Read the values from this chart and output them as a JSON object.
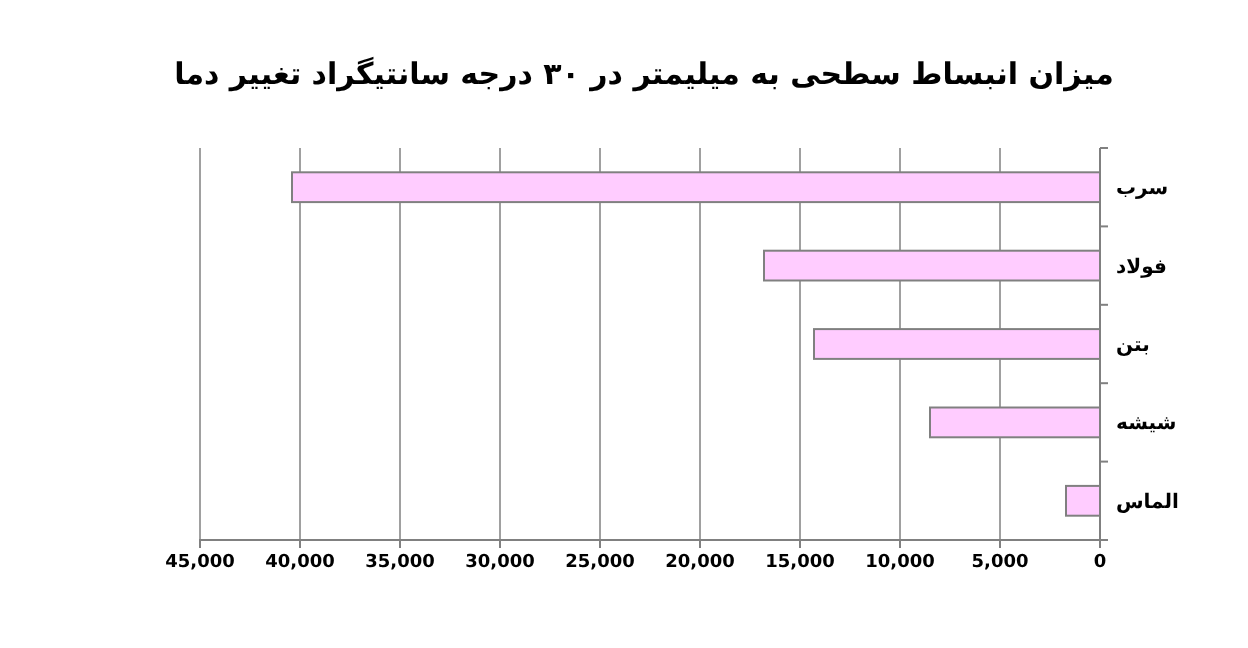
{
  "chart_data": {
    "type": "bar",
    "orientation": "horizontal",
    "title": "میزان انبساط سطحی به میلیمتر در ۳۰ درجه سانتیگراد تغییر دما",
    "categories": [
      "سرب",
      "فولاد",
      "بتن",
      "شیشه",
      "الماس"
    ],
    "values": [
      40400,
      16800,
      14300,
      8500,
      1700
    ],
    "color": "#ffccff",
    "xlim": [
      45000,
      0
    ],
    "xticks": [
      {
        "value": 45000,
        "label": "45,000"
      },
      {
        "value": 40000,
        "label": "40,000"
      },
      {
        "value": 35000,
        "label": "35,000"
      },
      {
        "value": 30000,
        "label": "30,000"
      },
      {
        "value": 25000,
        "label": "25,000"
      },
      {
        "value": 20000,
        "label": "20,000"
      },
      {
        "value": 15000,
        "label": "15,000"
      },
      {
        "value": 10000,
        "label": "10,000"
      },
      {
        "value": 5000,
        "label": "5,000"
      },
      0
    ],
    "grid": "x"
  }
}
